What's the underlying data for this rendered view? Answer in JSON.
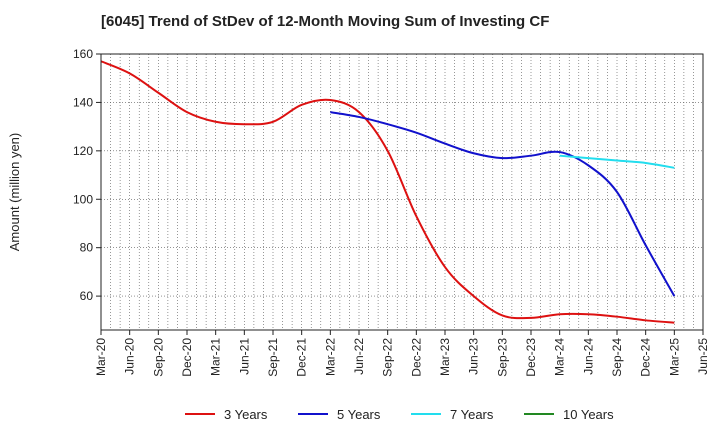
{
  "chart_data": {
    "type": "line",
    "title": "[6045]  Trend of StDev of 12-Month Moving Sum of Investing CF",
    "ylabel": "Amount (million yen)",
    "xlabel": "",
    "ylim": [
      46,
      160
    ],
    "yticks": [
      60,
      80,
      100,
      120,
      140,
      160
    ],
    "grid": true,
    "legend_position": "bottom",
    "x_start": "Mar-20",
    "x_end": "Jun-25",
    "categories": [
      "Mar-20",
      "Jun-20",
      "Sep-20",
      "Dec-20",
      "Mar-21",
      "Jun-21",
      "Sep-21",
      "Dec-21",
      "Mar-22",
      "Jun-22",
      "Sep-22",
      "Dec-22",
      "Mar-23",
      "Jun-23",
      "Sep-23",
      "Dec-23",
      "Mar-24",
      "Jun-24",
      "Sep-24",
      "Dec-24",
      "Mar-25",
      "Jun-25"
    ],
    "series": [
      {
        "name": "3 Years",
        "color": "#dd1111",
        "x": [
          "Mar-20",
          "Jun-20",
          "Sep-20",
          "Dec-20",
          "Mar-21",
          "Jun-21",
          "Sep-21",
          "Dec-21",
          "Mar-22",
          "Jun-22",
          "Sep-22",
          "Dec-22",
          "Mar-23",
          "Jun-23",
          "Sep-23",
          "Dec-23",
          "Mar-24",
          "Jun-24",
          "Sep-24",
          "Dec-24",
          "Mar-25"
        ],
        "values": [
          157,
          152,
          144,
          136,
          132,
          131,
          132,
          139,
          141,
          136,
          120,
          93,
          72,
          60,
          52,
          51,
          52.5,
          52.5,
          51.5,
          50,
          49
        ]
      },
      {
        "name": "5 Years",
        "color": "#1111cc",
        "x": [
          "Mar-22",
          "Jun-22",
          "Sep-22",
          "Dec-22",
          "Mar-23",
          "Jun-23",
          "Sep-23",
          "Dec-23",
          "Mar-24",
          "Jun-24",
          "Sep-24",
          "Dec-24",
          "Mar-25"
        ],
        "values": [
          136,
          134,
          131,
          127.5,
          123,
          119,
          117,
          118,
          119.5,
          114,
          103,
          81,
          60
        ]
      },
      {
        "name": "7 Years",
        "color": "#22ddee",
        "x": [
          "Mar-24",
          "Jun-24",
          "Sep-24",
          "Dec-24",
          "Mar-25"
        ],
        "values": [
          118,
          117,
          116,
          115,
          113
        ]
      },
      {
        "name": "10 Years",
        "color": "#228822",
        "x": [],
        "values": []
      }
    ]
  }
}
